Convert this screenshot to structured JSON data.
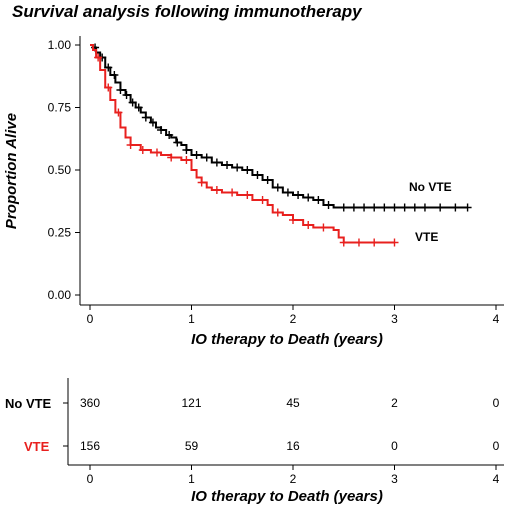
{
  "chart_data": [
    {
      "type": "line",
      "title": "Survival analysis following immunotherapy",
      "xlabel": "IO therapy to Death (years)",
      "ylabel": "Proportion Alive",
      "xlim": [
        0,
        4
      ],
      "ylim": [
        0,
        1
      ],
      "xticks": [
        "0",
        "1",
        "2",
        "3",
        "4"
      ],
      "yticks": [
        "0.00",
        "0.25",
        "0.50",
        "0.75",
        "1.00"
      ],
      "grid": false,
      "legend": "inline labels at right end of curves",
      "series": [
        {
          "name": "No VTE",
          "color": "#000000",
          "points": [
            [
              0,
              1.0
            ],
            [
              0.03,
              0.99
            ],
            [
              0.06,
              0.97
            ],
            [
              0.1,
              0.95
            ],
            [
              0.15,
              0.91
            ],
            [
              0.2,
              0.88
            ],
            [
              0.25,
              0.85
            ],
            [
              0.3,
              0.82
            ],
            [
              0.35,
              0.8
            ],
            [
              0.4,
              0.77
            ],
            [
              0.45,
              0.75
            ],
            [
              0.5,
              0.73
            ],
            [
              0.55,
              0.71
            ],
            [
              0.6,
              0.69
            ],
            [
              0.65,
              0.67
            ],
            [
              0.7,
              0.66
            ],
            [
              0.75,
              0.64
            ],
            [
              0.8,
              0.63
            ],
            [
              0.85,
              0.61
            ],
            [
              0.9,
              0.6
            ],
            [
              0.95,
              0.58
            ],
            [
              1.0,
              0.56
            ],
            [
              1.1,
              0.55
            ],
            [
              1.2,
              0.53
            ],
            [
              1.3,
              0.52
            ],
            [
              1.4,
              0.51
            ],
            [
              1.5,
              0.5
            ],
            [
              1.6,
              0.48
            ],
            [
              1.7,
              0.46
            ],
            [
              1.8,
              0.43
            ],
            [
              1.9,
              0.41
            ],
            [
              2.0,
              0.4
            ],
            [
              2.1,
              0.39
            ],
            [
              2.2,
              0.38
            ],
            [
              2.3,
              0.36
            ],
            [
              2.4,
              0.35
            ],
            [
              2.6,
              0.35
            ],
            [
              3.0,
              0.35
            ],
            [
              3.4,
              0.35
            ],
            [
              3.72,
              0.35
            ]
          ],
          "censor_x": [
            0.05,
            0.12,
            0.18,
            0.24,
            0.3,
            0.36,
            0.42,
            0.48,
            0.55,
            0.62,
            0.7,
            0.78,
            0.86,
            0.95,
            1.05,
            1.15,
            1.25,
            1.35,
            1.45,
            1.55,
            1.65,
            1.75,
            1.85,
            1.95,
            2.05,
            2.15,
            2.25,
            2.35,
            2.5,
            2.6,
            2.7,
            2.8,
            2.9,
            3.0,
            3.1,
            3.2,
            3.3,
            3.45,
            3.6,
            3.72
          ]
        },
        {
          "name": "VTE",
          "color": "#e8201e",
          "points": [
            [
              0,
              1.0
            ],
            [
              0.03,
              0.98
            ],
            [
              0.06,
              0.95
            ],
            [
              0.1,
              0.9
            ],
            [
              0.15,
              0.83
            ],
            [
              0.2,
              0.78
            ],
            [
              0.25,
              0.73
            ],
            [
              0.3,
              0.67
            ],
            [
              0.35,
              0.63
            ],
            [
              0.4,
              0.6
            ],
            [
              0.5,
              0.58
            ],
            [
              0.6,
              0.57
            ],
            [
              0.7,
              0.56
            ],
            [
              0.8,
              0.55
            ],
            [
              0.9,
              0.54
            ],
            [
              1.0,
              0.5
            ],
            [
              1.05,
              0.47
            ],
            [
              1.1,
              0.45
            ],
            [
              1.15,
              0.43
            ],
            [
              1.2,
              0.42
            ],
            [
              1.3,
              0.41
            ],
            [
              1.45,
              0.4
            ],
            [
              1.6,
              0.38
            ],
            [
              1.75,
              0.36
            ],
            [
              1.8,
              0.33
            ],
            [
              1.9,
              0.32
            ],
            [
              2.0,
              0.3
            ],
            [
              2.1,
              0.28
            ],
            [
              2.2,
              0.27
            ],
            [
              2.4,
              0.26
            ],
            [
              2.45,
              0.23
            ],
            [
              2.5,
              0.21
            ],
            [
              2.7,
              0.21
            ],
            [
              3.0,
              0.21
            ]
          ],
          "censor_x": [
            0.08,
            0.18,
            0.28,
            0.4,
            0.52,
            0.66,
            0.8,
            0.95,
            1.1,
            1.25,
            1.4,
            1.55,
            1.7,
            1.85,
            2.0,
            2.15,
            2.3,
            2.5,
            2.65,
            2.8,
            3.0
          ]
        }
      ]
    },
    {
      "type": "table",
      "xlabel": "IO therapy to Death (years)",
      "xlim": [
        0,
        4
      ],
      "xticks": [
        "0",
        "1",
        "2",
        "3",
        "4"
      ],
      "rows": [
        {
          "name": "No VTE",
          "color": "#000000",
          "x": [
            0,
            1,
            2,
            3,
            4
          ],
          "values": [
            360,
            121,
            45,
            2,
            0
          ]
        },
        {
          "name": "VTE",
          "color": "#e8201e",
          "x": [
            0,
            1,
            2,
            3,
            4
          ],
          "values": [
            156,
            59,
            16,
            0,
            0
          ]
        }
      ]
    }
  ]
}
